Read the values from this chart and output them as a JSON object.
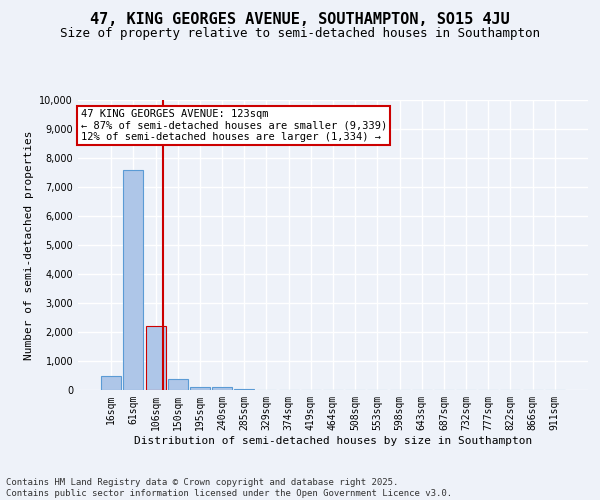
{
  "title": "47, KING GEORGES AVENUE, SOUTHAMPTON, SO15 4JU",
  "subtitle": "Size of property relative to semi-detached houses in Southampton",
  "xlabel": "Distribution of semi-detached houses by size in Southampton",
  "ylabel": "Number of semi-detached properties",
  "categories": [
    "16sqm",
    "61sqm",
    "106sqm",
    "150sqm",
    "195sqm",
    "240sqm",
    "285sqm",
    "329sqm",
    "374sqm",
    "419sqm",
    "464sqm",
    "508sqm",
    "553sqm",
    "598sqm",
    "643sqm",
    "687sqm",
    "732sqm",
    "777sqm",
    "822sqm",
    "866sqm",
    "911sqm"
  ],
  "values": [
    500,
    7600,
    2200,
    390,
    120,
    95,
    40,
    0,
    0,
    0,
    0,
    0,
    0,
    0,
    0,
    0,
    0,
    0,
    0,
    0,
    0
  ],
  "bar_color": "#aec6e8",
  "bar_edge_color": "#5b9bd5",
  "highlight_bar_index": 2,
  "highlight_bar_edge_color": "#cc0000",
  "red_line_x": 2.35,
  "annotation_title": "47 KING GEORGES AVENUE: 123sqm",
  "annotation_line1": "← 87% of semi-detached houses are smaller (9,339)",
  "annotation_line2": "12% of semi-detached houses are larger (1,334) →",
  "annotation_box_color": "#ffffff",
  "annotation_box_edge_color": "#cc0000",
  "ylim": [
    0,
    10000
  ],
  "yticks": [
    0,
    1000,
    2000,
    3000,
    4000,
    5000,
    6000,
    7000,
    8000,
    9000,
    10000
  ],
  "background_color": "#eef2f9",
  "grid_color": "#ffffff",
  "footer": "Contains HM Land Registry data © Crown copyright and database right 2025.\nContains public sector information licensed under the Open Government Licence v3.0.",
  "title_fontsize": 11,
  "subtitle_fontsize": 9,
  "axis_label_fontsize": 8,
  "tick_fontsize": 7,
  "annotation_fontsize": 7.5,
  "footer_fontsize": 6.5
}
